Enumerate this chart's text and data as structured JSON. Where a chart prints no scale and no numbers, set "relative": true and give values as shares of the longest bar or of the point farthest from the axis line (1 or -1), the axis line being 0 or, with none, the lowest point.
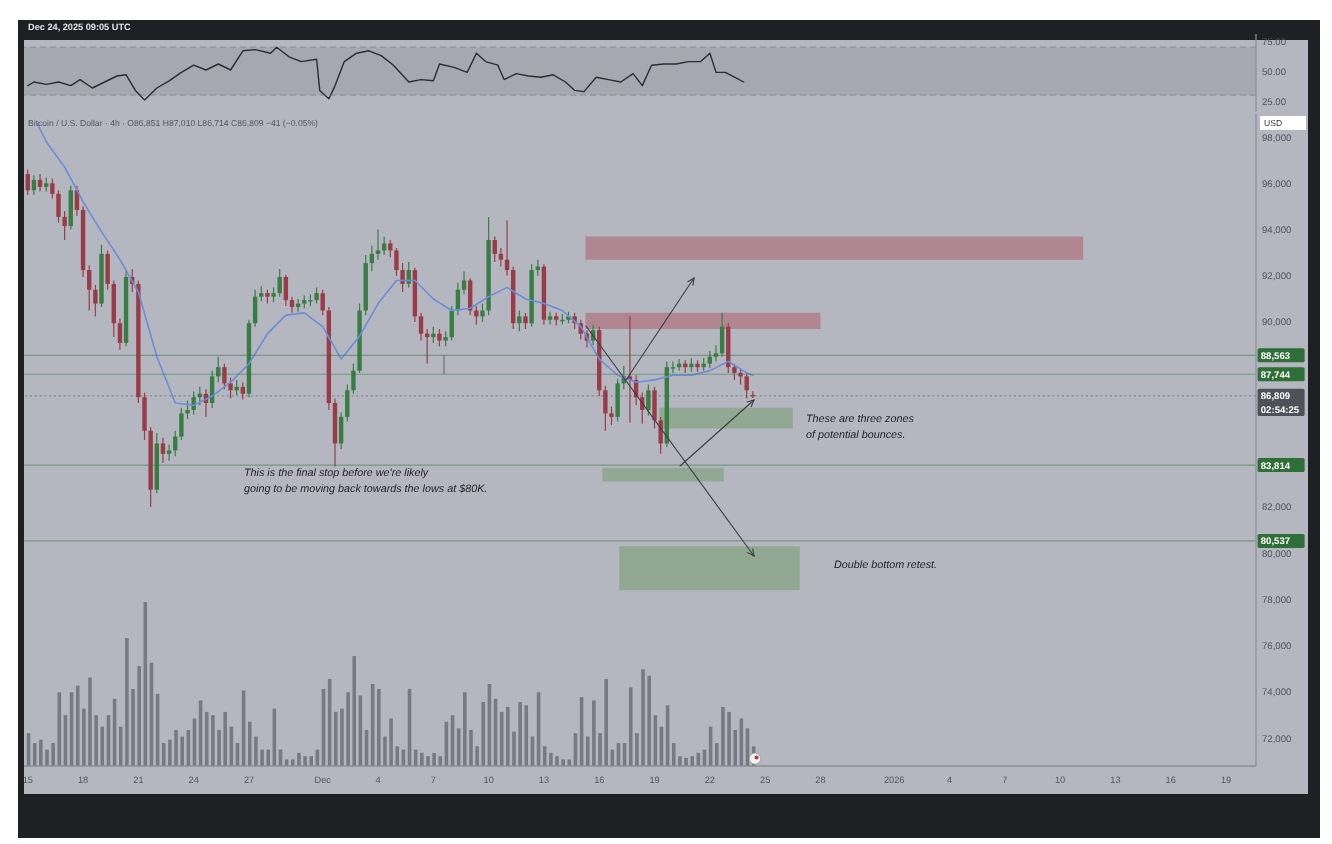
{
  "chart_data": [
    {
      "type": "line",
      "x": [
        "2025-11-15T00:00",
        "2025-11-15T08:00",
        "2025-11-16T00:00",
        "2025-11-16T16:00",
        "2025-11-17T08:00",
        "2025-11-17T20:00",
        "2025-11-18T12:00",
        "2025-11-19T04:00",
        "2025-11-19T20:00",
        "2025-11-20T08:00",
        "2025-11-20T20:00",
        "2025-11-21T08:00",
        "2025-11-22T00:00",
        "2025-11-22T16:00",
        "2025-11-23T08:00",
        "2025-11-24T00:00",
        "2025-11-24T16:00",
        "2025-11-25T08:00",
        "2025-11-26T00:00",
        "2025-11-26T16:00",
        "2025-11-27T08:00",
        "2025-11-28T04:00",
        "2025-11-28T12:00",
        "2025-11-29T04:00",
        "2025-11-29T20:00",
        "2025-11-30T16:00",
        "2025-11-30T20:00",
        "2025-12-01T08:00",
        "2025-12-01T16:00",
        "2025-12-02T04:00",
        "2025-12-02T20:00",
        "2025-12-03T12:00",
        "2025-12-04T04:00",
        "2025-12-04T20:00",
        "2025-12-05T16:00",
        "2025-12-06T08:00",
        "2025-12-07T00:00",
        "2025-12-07T08:00",
        "2025-12-08T04:00",
        "2025-12-08T20:00",
        "2025-12-09T08:00",
        "2025-12-09T20:00",
        "2025-12-10T12:00",
        "2025-12-10T20:00",
        "2025-12-11T12:00",
        "2025-12-12T04:00",
        "2025-12-12T20:00",
        "2025-12-13T12:00",
        "2025-12-14T04:00",
        "2025-12-14T16:00",
        "2025-12-15T04:00",
        "2025-12-15T20:00",
        "2025-12-16T12:00",
        "2025-12-17T04:00",
        "2025-12-17T20:00",
        "2025-12-18T08:00",
        "2025-12-18T20:00",
        "2025-12-19T12:00",
        "2025-12-20T04:00",
        "2025-12-20T20:00",
        "2025-12-21T12:00",
        "2025-12-22T00:00",
        "2025-12-22T08:00",
        "2025-12-22T20:00",
        "2025-12-23T08:00",
        "2025-12-23T20:00"
      ],
      "values": [
        38,
        41,
        39,
        41,
        38,
        43,
        36,
        41,
        46,
        47,
        34,
        26,
        36,
        42,
        49,
        55,
        51,
        56,
        51,
        67,
        68,
        65,
        70,
        62,
        58,
        60,
        34,
        27,
        38,
        58,
        65,
        67,
        63,
        55,
        41,
        43,
        42,
        56,
        53,
        49,
        65,
        58,
        55,
        43,
        48,
        46,
        45,
        47,
        41,
        34,
        33,
        45,
        43,
        41,
        48,
        38,
        55,
        56,
        56,
        58,
        58,
        65,
        49,
        49,
        45,
        41
      ],
      "color": "#2b2d31",
      "xlim": [
        "2025-11-14T19:00",
        "2026-01-20T15:00"
      ],
      "ylim": [
        16,
        81
      ],
      "yticks": [
        {
          "value": 75,
          "label": "75.00"
        },
        {
          "value": 50,
          "label": "50.00"
        },
        {
          "value": 25,
          "label": "25.00"
        }
      ],
      "tick_labels": "y",
      "bands": [
        {
          "axis": "y",
          "from": 30,
          "to": 70,
          "color": "#a3a6ae"
        }
      ],
      "ref_lines": [
        {
          "axis": "y",
          "value": 70,
          "color": "#6f727a",
          "line_style": "dashed"
        },
        {
          "axis": "y",
          "value": 30,
          "color": "#6f727a",
          "line_style": "dashed"
        }
      ],
      "annotations": [
        "Dec 24, 2025 09:05 UTC"
      ]
    },
    {
      "type": "candlestick",
      "title": "Bitcoin / U.S. Dollar · 4h · O86,851 H87,010 L86,714 C86,809 −41 (−0.05%)",
      "ylabel": "USD",
      "x": [
        "2025-11-15T00:00",
        "2025-11-15T08:00",
        "2025-11-15T16:00",
        "2025-11-16T00:00",
        "2025-11-16T08:00",
        "2025-11-16T16:00",
        "2025-11-17T00:00",
        "2025-11-17T08:00",
        "2025-11-17T16:00",
        "2025-11-18T00:00",
        "2025-11-18T08:00",
        "2025-11-18T16:00",
        "2025-11-19T00:00",
        "2025-11-19T08:00",
        "2025-11-19T16:00",
        "2025-11-20T00:00",
        "2025-11-20T08:00",
        "2025-11-20T16:00",
        "2025-11-21T00:00",
        "2025-11-21T08:00",
        "2025-11-21T16:00",
        "2025-11-22T00:00",
        "2025-11-22T08:00",
        "2025-11-22T16:00",
        "2025-11-23T00:00",
        "2025-11-23T08:00",
        "2025-11-23T16:00",
        "2025-11-24T00:00",
        "2025-11-24T08:00",
        "2025-11-24T16:00",
        "2025-11-25T00:00",
        "2025-11-25T08:00",
        "2025-11-25T16:00",
        "2025-11-26T00:00",
        "2025-11-26T08:00",
        "2025-11-26T16:00",
        "2025-11-27T00:00",
        "2025-11-27T08:00",
        "2025-11-27T16:00",
        "2025-11-28T00:00",
        "2025-11-28T08:00",
        "2025-11-28T16:00",
        "2025-11-29T00:00",
        "2025-11-29T08:00",
        "2025-11-29T16:00",
        "2025-11-30T00:00",
        "2025-11-30T08:00",
        "2025-11-30T16:00",
        "2025-12-01T00:00",
        "2025-12-01T08:00",
        "2025-12-01T16:00",
        "2025-12-02T00:00",
        "2025-12-02T08:00",
        "2025-12-02T16:00",
        "2025-12-03T00:00",
        "2025-12-03T08:00",
        "2025-12-03T16:00",
        "2025-12-04T00:00",
        "2025-12-04T08:00",
        "2025-12-04T16:00",
        "2025-12-05T00:00",
        "2025-12-05T08:00",
        "2025-12-05T16:00",
        "2025-12-06T00:00",
        "2025-12-06T08:00",
        "2025-12-06T16:00",
        "2025-12-07T00:00",
        "2025-12-07T08:00",
        "2025-12-07T16:00",
        "2025-12-08T00:00",
        "2025-12-08T08:00",
        "2025-12-08T16:00",
        "2025-12-09T00:00",
        "2025-12-09T08:00",
        "2025-12-09T16:00",
        "2025-12-10T00:00",
        "2025-12-10T08:00",
        "2025-12-10T16:00",
        "2025-12-11T00:00",
        "2025-12-11T08:00",
        "2025-12-11T16:00",
        "2025-12-12T00:00",
        "2025-12-12T08:00",
        "2025-12-12T16:00",
        "2025-12-13T00:00",
        "2025-12-13T08:00",
        "2025-12-13T16:00",
        "2025-12-14T00:00",
        "2025-12-14T08:00",
        "2025-12-14T16:00",
        "2025-12-15T00:00",
        "2025-12-15T08:00",
        "2025-12-15T16:00",
        "2025-12-16T00:00",
        "2025-12-16T08:00",
        "2025-12-16T16:00",
        "2025-12-17T00:00",
        "2025-12-17T08:00",
        "2025-12-17T16:00",
        "2025-12-18T00:00",
        "2025-12-18T08:00",
        "2025-12-18T16:00",
        "2025-12-19T00:00",
        "2025-12-19T08:00",
        "2025-12-19T16:00",
        "2025-12-20T00:00",
        "2025-12-20T08:00",
        "2025-12-20T16:00",
        "2025-12-21T00:00",
        "2025-12-21T08:00",
        "2025-12-21T16:00",
        "2025-12-22T00:00",
        "2025-12-22T08:00",
        "2025-12-22T16:00",
        "2025-12-23T00:00",
        "2025-12-23T08:00",
        "2025-12-23T16:00",
        "2025-12-24T00:00",
        "2025-12-24T08:00"
      ],
      "ohlc": [
        [
          96400,
          96600,
          95500,
          95700
        ],
        [
          95700,
          96350,
          95500,
          96150
        ],
        [
          96150,
          96400,
          95650,
          95850
        ],
        [
          95850,
          96250,
          95650,
          96000
        ],
        [
          96000,
          96200,
          95350,
          95550
        ],
        [
          95550,
          95700,
          94300,
          94550
        ],
        [
          94550,
          94800,
          93550,
          94150
        ],
        [
          94150,
          95900,
          94000,
          95700
        ],
        [
          95700,
          95900,
          94600,
          94850
        ],
        [
          94850,
          95000,
          91950,
          92250
        ],
        [
          92250,
          92450,
          90500,
          91400
        ],
        [
          91400,
          91600,
          90250,
          90800
        ],
        [
          90800,
          93350,
          90650,
          92950
        ],
        [
          92950,
          93100,
          91400,
          91650
        ],
        [
          91650,
          91800,
          89350,
          89950
        ],
        [
          89950,
          90150,
          88800,
          89100
        ],
        [
          89100,
          92200,
          88950,
          91950
        ],
        [
          91950,
          92300,
          91300,
          91650
        ],
        [
          91650,
          91800,
          86500,
          86750
        ],
        [
          86750,
          86950,
          84900,
          85300
        ],
        [
          85300,
          85450,
          82000,
          82750
        ],
        [
          82750,
          85200,
          82600,
          84750
        ],
        [
          84750,
          85000,
          83900,
          84300
        ],
        [
          84300,
          84700,
          84000,
          84450
        ],
        [
          84450,
          85300,
          84200,
          85050
        ],
        [
          85050,
          86300,
          84900,
          86050
        ],
        [
          86050,
          86600,
          85800,
          86200
        ],
        [
          86200,
          87000,
          86000,
          86750
        ],
        [
          86750,
          87200,
          86400,
          86900
        ],
        [
          86900,
          87100,
          85900,
          86500
        ],
        [
          86500,
          87900,
          86300,
          87650
        ],
        [
          87650,
          88500,
          87400,
          88050
        ],
        [
          88050,
          88200,
          87100,
          87350
        ],
        [
          87350,
          87600,
          86700,
          87050
        ],
        [
          87050,
          87500,
          86850,
          87200
        ],
        [
          87200,
          87400,
          86650,
          86900
        ],
        [
          86900,
          90100,
          86750,
          89950
        ],
        [
          89950,
          91400,
          89800,
          91100
        ],
        [
          91100,
          91550,
          90900,
          91250
        ],
        [
          91250,
          91400,
          90800,
          91100
        ],
        [
          91100,
          91500,
          90850,
          91250
        ],
        [
          91250,
          92300,
          91100,
          91950
        ],
        [
          91950,
          92050,
          90700,
          90950
        ],
        [
          90950,
          91100,
          90400,
          90650
        ],
        [
          90650,
          91000,
          90450,
          90800
        ],
        [
          90800,
          91150,
          90600,
          90950
        ],
        [
          90950,
          91200,
          90700,
          90950
        ],
        [
          90950,
          91500,
          90800,
          91250
        ],
        [
          91250,
          91400,
          90300,
          90500
        ],
        [
          90500,
          90650,
          86200,
          86500
        ],
        [
          86500,
          86700,
          83750,
          84750
        ],
        [
          84750,
          86100,
          84500,
          85900
        ],
        [
          85900,
          87300,
          85700,
          87050
        ],
        [
          87050,
          88200,
          86900,
          87900
        ],
        [
          87900,
          90800,
          87800,
          90500
        ],
        [
          90500,
          92900,
          90300,
          92550
        ],
        [
          92550,
          93300,
          92200,
          92950
        ],
        [
          92950,
          94000,
          92700,
          93100
        ],
        [
          93100,
          93700,
          92900,
          93400
        ],
        [
          93400,
          93550,
          92800,
          93100
        ],
        [
          93100,
          93200,
          92000,
          92250
        ],
        [
          92250,
          92550,
          91300,
          91650
        ],
        [
          91650,
          92600,
          91500,
          92250
        ],
        [
          92250,
          92350,
          90000,
          90250
        ],
        [
          90250,
          90400,
          89200,
          89500
        ],
        [
          89500,
          89700,
          88200,
          89350
        ],
        [
          89350,
          89800,
          89100,
          89500
        ],
        [
          89500,
          89700,
          88950,
          89200
        ],
        [
          89200,
          89600,
          88950,
          89350
        ],
        [
          89350,
          90700,
          89200,
          90500
        ],
        [
          90500,
          91700,
          90300,
          91400
        ],
        [
          91400,
          92200,
          91200,
          91800
        ],
        [
          91800,
          91900,
          90300,
          90500
        ],
        [
          90500,
          90700,
          89900,
          90250
        ],
        [
          90250,
          90800,
          90000,
          90500
        ],
        [
          90500,
          94550,
          90300,
          93550
        ],
        [
          93550,
          93700,
          92600,
          92950
        ],
        [
          92950,
          93200,
          92400,
          92700
        ],
        [
          92700,
          94400,
          92000,
          92250
        ],
        [
          92250,
          92400,
          89700,
          89950
        ],
        [
          89950,
          90500,
          89600,
          90250
        ],
        [
          90250,
          90400,
          89700,
          89950
        ],
        [
          89950,
          92500,
          89800,
          92250
        ],
        [
          92250,
          92700,
          92000,
          92400
        ],
        [
          92400,
          92500,
          89900,
          90100
        ],
        [
          90100,
          90450,
          89900,
          90250
        ],
        [
          90250,
          90400,
          89850,
          90100
        ],
        [
          90100,
          90350,
          89900,
          90100
        ],
        [
          90100,
          90450,
          89950,
          90250
        ],
        [
          90250,
          90400,
          89700,
          89950
        ],
        [
          89950,
          90100,
          89250,
          89500
        ],
        [
          89500,
          89650,
          88900,
          89200
        ],
        [
          89200,
          89900,
          89000,
          89650
        ],
        [
          89650,
          89800,
          86800,
          87050
        ],
        [
          87050,
          87250,
          85300,
          86050
        ],
        [
          86050,
          86350,
          85550,
          85900
        ],
        [
          85900,
          87550,
          85700,
          87350
        ],
        [
          87350,
          88100,
          87100,
          87650
        ],
        [
          87650,
          90250,
          85650,
          87500
        ],
        [
          87500,
          87700,
          86400,
          86750
        ],
        [
          86750,
          86950,
          85600,
          86200
        ],
        [
          86200,
          87300,
          85950,
          87050
        ],
        [
          87050,
          87200,
          85400,
          85750
        ],
        [
          85750,
          85900,
          84300,
          84750
        ],
        [
          84750,
          88300,
          84600,
          88050
        ],
        [
          88050,
          88300,
          87800,
          88050
        ],
        [
          88050,
          88400,
          87900,
          88200
        ],
        [
          88200,
          88350,
          87800,
          88050
        ],
        [
          88050,
          88450,
          87850,
          88200
        ],
        [
          88200,
          88350,
          87850,
          88050
        ],
        [
          88050,
          88450,
          87900,
          88200
        ],
        [
          88200,
          88750,
          88000,
          88500
        ],
        [
          88500,
          89000,
          88300,
          88650
        ],
        [
          88650,
          90400,
          88500,
          89800
        ],
        [
          89800,
          89950,
          87800,
          88050
        ],
        [
          88050,
          88200,
          87500,
          87800
        ],
        [
          87800,
          88000,
          87300,
          87650
        ],
        [
          87650,
          87800,
          86700,
          87050
        ],
        [
          86851,
          87010,
          86714,
          86809
        ]
      ],
      "colors": [
        "#9a3c48",
        "#3a7d44",
        "#9a3c48",
        "#3a7d44",
        "#9a3c48",
        "#9a3c48",
        "#9a3c48",
        "#3a7d44",
        "#9a3c48",
        "#9a3c48",
        "#9a3c48",
        "#9a3c48",
        "#3a7d44",
        "#9a3c48",
        "#9a3c48",
        "#9a3c48",
        "#3a7d44",
        "#9a3c48",
        "#9a3c48",
        "#9a3c48",
        "#9a3c48",
        "#3a7d44",
        "#9a3c48",
        "#3a7d44",
        "#3a7d44",
        "#3a7d44",
        "#3a7d44",
        "#3a7d44",
        "#3a7d44",
        "#9a3c48",
        "#3a7d44",
        "#3a7d44",
        "#9a3c48",
        "#9a3c48",
        "#3a7d44",
        "#9a3c48",
        "#3a7d44",
        "#3a7d44",
        "#3a7d44",
        "#9a3c48",
        "#3a7d44",
        "#3a7d44",
        "#9a3c48",
        "#9a3c48",
        "#3a7d44",
        "#3a7d44",
        "#3a7d44",
        "#3a7d44",
        "#9a3c48",
        "#9a3c48",
        "#9a3c48",
        "#3a7d44",
        "#3a7d44",
        "#3a7d44",
        "#3a7d44",
        "#3a7d44",
        "#3a7d44",
        "#3a7d44",
        "#3a7d44",
        "#9a3c48",
        "#9a3c48",
        "#9a3c48",
        "#3a7d44",
        "#9a3c48",
        "#9a3c48",
        "#9a3c48",
        "#3a7d44",
        "#9a3c48",
        "#3a7d44",
        "#3a7d44",
        "#3a7d44",
        "#3a7d44",
        "#9a3c48",
        "#9a3c48",
        "#3a7d44",
        "#3a7d44",
        "#9a3c48",
        "#9a3c48",
        "#9a3c48",
        "#9a3c48",
        "#3a7d44",
        "#9a3c48",
        "#3a7d44",
        "#3a7d44",
        "#9a3c48",
        "#3a7d44",
        "#9a3c48",
        "#3a7d44",
        "#3a7d44",
        "#9a3c48",
        "#9a3c48",
        "#9a3c48",
        "#3a7d44",
        "#9a3c48",
        "#9a3c48",
        "#9a3c48",
        "#3a7d44",
        "#3a7d44",
        "#9a3c48",
        "#9a3c48",
        "#9a3c48",
        "#3a7d44",
        "#9a3c48",
        "#9a3c48",
        "#3a7d44",
        "#3a7d44",
        "#3a7d44",
        "#9a3c48",
        "#3a7d44",
        "#9a3c48",
        "#3a7d44",
        "#3a7d44",
        "#3a7d44",
        "#3a7d44",
        "#9a3c48",
        "#9a3c48",
        "#9a3c48",
        "#9a3c48",
        "#9a3c48"
      ],
      "series": [
        {
          "type": "line",
          "color": "#6b8ed8",
          "x": [
            "2025-11-15T12:00",
            "2025-11-16",
            "2025-11-17",
            "2025-11-18",
            "2025-11-19",
            "2025-11-20",
            "2025-11-21",
            "2025-11-22",
            "2025-11-23",
            "2025-11-24",
            "2025-11-25",
            "2025-11-26",
            "2025-11-27",
            "2025-11-28",
            "2025-11-29",
            "2025-11-30",
            "2025-12-01",
            "2025-12-02",
            "2025-12-03",
            "2025-12-04",
            "2025-12-05",
            "2025-12-06",
            "2025-12-07",
            "2025-12-08",
            "2025-12-09",
            "2025-12-10",
            "2025-12-11",
            "2025-12-12",
            "2025-12-13",
            "2025-12-14",
            "2025-12-15",
            "2025-12-16",
            "2025-12-17",
            "2025-12-18",
            "2025-12-19",
            "2025-12-20",
            "2025-12-21",
            "2025-12-22",
            "2025-12-23",
            "2025-12-24",
            "2025-12-24T08:00"
          ],
          "values": [
            98600,
            97800,
            96700,
            95200,
            93900,
            92700,
            91300,
            88500,
            86500,
            86400,
            86800,
            87400,
            88200,
            89500,
            90300,
            90400,
            89800,
            88400,
            89400,
            90800,
            91800,
            91800,
            91000,
            90500,
            90600,
            91100,
            91500,
            91000,
            90800,
            90500,
            89800,
            88400,
            87700,
            87400,
            87500,
            87700,
            87700,
            87900,
            88300,
            87800,
            87700
          ]
        },
        {
          "type": "line",
          "color": "#b0838d",
          "x": [
            "2025-12-15T06:00",
            "2026-01-11T06:00"
          ],
          "values": [
            null,
            null
          ],
          "lower": [
            92700,
            92700
          ],
          "upper": [
            93700,
            93700
          ]
        },
        {
          "type": "line",
          "color": "#b0838d",
          "x": [
            "2025-12-15T06:00",
            "2025-12-28T00:00"
          ],
          "values": [
            null,
            null
          ],
          "lower": [
            89700,
            89700
          ],
          "upper": [
            90400,
            90400
          ]
        },
        {
          "type": "line",
          "color": "#8fa88f",
          "x": [
            "2025-12-19T06:00",
            "2025-12-26T12:00"
          ],
          "values": [
            null,
            null
          ],
          "lower": [
            85400,
            85400
          ],
          "upper": [
            86300,
            86300
          ]
        },
        {
          "type": "line",
          "color": "#8fa88f",
          "x": [
            "2025-12-16T04:00",
            "2025-12-22T18:00"
          ],
          "values": [
            null,
            null
          ],
          "lower": [
            83100,
            83100
          ],
          "upper": [
            83700,
            83700
          ]
        },
        {
          "type": "line",
          "color": "#8fa88f",
          "x": [
            "2025-12-17T02:00",
            "2025-12-26T21:00"
          ],
          "values": [
            null,
            null
          ],
          "lower": [
            78400,
            78400
          ],
          "upper": [
            80300,
            80300
          ]
        }
      ],
      "xlim": [
        "2025-11-14T19:00",
        "2026-01-20T15:00"
      ],
      "xticks": [
        {
          "value": "2025-11-15",
          "label": "15"
        },
        {
          "value": "2025-11-18",
          "label": "18"
        },
        {
          "value": "2025-11-21",
          "label": "21"
        },
        {
          "value": "2025-11-24",
          "label": "24"
        },
        {
          "value": "2025-11-27",
          "label": "27"
        },
        {
          "value": "2025-12-01",
          "label": "Dec"
        },
        {
          "value": "2025-12-04",
          "label": "4"
        },
        {
          "value": "2025-12-07",
          "label": "7"
        },
        {
          "value": "2025-12-10",
          "label": "10"
        },
        {
          "value": "2025-12-13",
          "label": "13"
        },
        {
          "value": "2025-12-16",
          "label": "16"
        },
        {
          "value": "2025-12-19",
          "label": "19"
        },
        {
          "value": "2025-12-22",
          "label": "22"
        },
        {
          "value": "2025-12-25",
          "label": "25"
        },
        {
          "value": "2025-12-28",
          "label": "28"
        },
        {
          "value": "2026-01-01",
          "label": "2026"
        },
        {
          "value": "2026-01-04",
          "label": "4"
        },
        {
          "value": "2026-01-07",
          "label": "7"
        },
        {
          "value": "2026-01-10",
          "label": "10"
        },
        {
          "value": "2026-01-13",
          "label": "13"
        },
        {
          "value": "2026-01-16",
          "label": "16"
        },
        {
          "value": "2026-01-19",
          "label": "19"
        }
      ],
      "ylim": [
        70800,
        99000
      ],
      "yticks": [
        {
          "value": 72000,
          "label": "72,000"
        },
        {
          "value": 74000,
          "label": "74,000"
        },
        {
          "value": 76000,
          "label": "76,000"
        },
        {
          "value": 78000,
          "label": "78,000"
        },
        {
          "value": 80000,
          "label": "80,000"
        },
        {
          "value": 82000,
          "label": "82,000"
        },
        {
          "value": 90000,
          "label": "90,000"
        },
        {
          "value": 92000,
          "label": "92,000"
        },
        {
          "value": 94000,
          "label": "94,000"
        },
        {
          "value": 96000,
          "label": "96,000"
        },
        {
          "value": 98000,
          "label": "98,000"
        }
      ],
      "ref_lines": [
        {
          "axis": "y",
          "value": 88563,
          "label": "88,563",
          "color": "#2e6e37"
        },
        {
          "axis": "y",
          "value": 87744,
          "label": "87,744",
          "color": "#2e6e37"
        },
        {
          "axis": "y",
          "value": 86809,
          "label": "86,809\n02:54:25",
          "color": "#4e5158",
          "line_style": "dotted"
        },
        {
          "axis": "y",
          "value": 83814,
          "label": "83,814",
          "color": "#2e6e37"
        },
        {
          "axis": "y",
          "value": 80537,
          "label": "80,537",
          "color": "#2e6e37"
        }
      ],
      "annotations": [
        "This is the final stop before we're likely\ngoing to be moving back towards the lows at $80K.",
        "These are three zones\nof potential bounces.",
        "Double bottom retest."
      ]
    },
    {
      "type": "bar",
      "relative": true,
      "tick_labels": false,
      "color": "#777a83",
      "xlim": [
        "2025-11-14T19:00",
        "2026-01-20T15:00"
      ],
      "x": [
        "2025-11-15T00:00",
        "2025-11-15T08:00",
        "2025-11-15T16:00",
        "2025-11-16T00:00",
        "2025-11-16T08:00",
        "2025-11-16T16:00",
        "2025-11-17T00:00",
        "2025-11-17T08:00",
        "2025-11-17T16:00",
        "2025-11-18T00:00",
        "2025-11-18T08:00",
        "2025-11-18T16:00",
        "2025-11-19T00:00",
        "2025-11-19T08:00",
        "2025-11-19T16:00",
        "2025-11-20T00:00",
        "2025-11-20T08:00",
        "2025-11-20T16:00",
        "2025-11-21T00:00",
        "2025-11-21T08:00",
        "2025-11-21T16:00",
        "2025-11-22T00:00",
        "2025-11-22T08:00",
        "2025-11-22T16:00",
        "2025-11-23T00:00",
        "2025-11-23T08:00",
        "2025-11-23T16:00",
        "2025-11-24T00:00",
        "2025-11-24T08:00",
        "2025-11-24T16:00",
        "2025-11-25T00:00",
        "2025-11-25T08:00",
        "2025-11-25T16:00",
        "2025-11-26T00:00",
        "2025-11-26T08:00",
        "2025-11-26T16:00",
        "2025-11-27T00:00",
        "2025-11-27T08:00",
        "2025-11-27T16:00",
        "2025-11-28T00:00",
        "2025-11-28T08:00",
        "2025-11-28T16:00",
        "2025-11-29T00:00",
        "2025-11-29T08:00",
        "2025-11-29T16:00",
        "2025-11-30T00:00",
        "2025-11-30T08:00",
        "2025-11-30T16:00",
        "2025-12-01T00:00",
        "2025-12-01T08:00",
        "2025-12-01T16:00",
        "2025-12-02T00:00",
        "2025-12-02T08:00",
        "2025-12-02T16:00",
        "2025-12-03T00:00",
        "2025-12-03T08:00",
        "2025-12-03T16:00",
        "2025-12-04T00:00",
        "2025-12-04T08:00",
        "2025-12-04T16:00",
        "2025-12-05T00:00",
        "2025-12-05T08:00",
        "2025-12-05T16:00",
        "2025-12-06T00:00",
        "2025-12-06T08:00",
        "2025-12-06T16:00",
        "2025-12-07T00:00",
        "2025-12-07T08:00",
        "2025-12-07T16:00",
        "2025-12-08T00:00",
        "2025-12-08T08:00",
        "2025-12-08T16:00",
        "2025-12-09T00:00",
        "2025-12-09T08:00",
        "2025-12-09T16:00",
        "2025-12-10T00:00",
        "2025-12-10T08:00",
        "2025-12-10T16:00",
        "2025-12-11T00:00",
        "2025-12-11T08:00",
        "2025-12-11T16:00",
        "2025-12-12T00:00",
        "2025-12-12T08:00",
        "2025-12-12T16:00",
        "2025-12-13T00:00",
        "2025-12-13T08:00",
        "2025-12-13T16:00",
        "2025-12-14T00:00",
        "2025-12-14T08:00",
        "2025-12-14T16:00",
        "2025-12-15T00:00",
        "2025-12-15T08:00",
        "2025-12-15T16:00",
        "2025-12-16T00:00",
        "2025-12-16T08:00",
        "2025-12-16T16:00",
        "2025-12-17T00:00",
        "2025-12-17T08:00",
        "2025-12-17T16:00",
        "2025-12-18T00:00",
        "2025-12-18T08:00",
        "2025-12-18T16:00",
        "2025-12-19T00:00",
        "2025-12-19T08:00",
        "2025-12-19T16:00",
        "2025-12-20T00:00",
        "2025-12-20T08:00",
        "2025-12-20T16:00",
        "2025-12-21T00:00",
        "2025-12-21T08:00",
        "2025-12-21T16:00",
        "2025-12-22T00:00",
        "2025-12-22T08:00",
        "2025-12-22T16:00",
        "2025-12-23T00:00",
        "2025-12-23T08:00",
        "2025-12-23T16:00",
        "2025-12-24T00:00",
        "2025-12-24T08:00"
      ],
      "values": [
        0.2,
        0.14,
        0.16,
        0.1,
        0.14,
        0.45,
        0.31,
        0.45,
        0.49,
        0.35,
        0.54,
        0.31,
        0.24,
        0.31,
        0.41,
        0.24,
        0.78,
        0.47,
        0.61,
        1,
        0.63,
        0.44,
        0.14,
        0.16,
        0.22,
        0.18,
        0.22,
        0.29,
        0.4,
        0.33,
        0.31,
        0.22,
        0.33,
        0.24,
        0.14,
        0.46,
        0.27,
        0.18,
        0.1,
        0.1,
        0.35,
        0.1,
        0.04,
        0.04,
        0.08,
        0.06,
        0.06,
        0.1,
        0.47,
        0.53,
        0.33,
        0.35,
        0.45,
        0.67,
        0.43,
        0.22,
        0.5,
        0.47,
        0.18,
        0.29,
        0.12,
        0.1,
        0.47,
        0.1,
        0.08,
        0.06,
        0.08,
        0.06,
        0.27,
        0.31,
        0.23,
        0.45,
        0.22,
        0.12,
        0.39,
        0.5,
        0.41,
        0.33,
        0.36,
        0.21,
        0.39,
        0.37,
        0.18,
        0.45,
        0.12,
        0.08,
        0.06,
        0.04,
        0.04,
        0.2,
        0.42,
        0.18,
        0.4,
        0.2,
        0.53,
        0.1,
        0.14,
        0.14,
        0.48,
        0.2,
        0.59,
        0.55,
        0.31,
        0.24,
        0.37,
        0.14,
        0.06,
        0.05,
        0.06,
        0.08,
        0.1,
        0.24,
        0.14,
        0.36,
        0.33,
        0.22,
        0.29,
        0.23,
        0.12
      ]
    }
  ]
}
